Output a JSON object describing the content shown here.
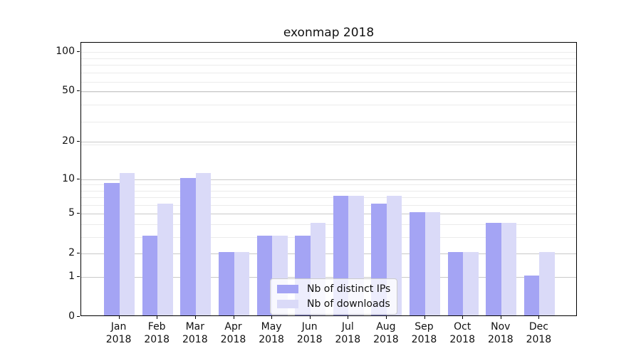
{
  "chart_data": {
    "type": "bar",
    "title": "exonmap 2018",
    "categories": [
      "Jan",
      "Feb",
      "Mar",
      "Apr",
      "May",
      "Jun",
      "Jul",
      "Aug",
      "Sep",
      "Oct",
      "Nov",
      "Dec"
    ],
    "category_year": "2018",
    "series": [
      {
        "name": "Nb of distinct IPs",
        "color": "#a4a4f4",
        "values": [
          9,
          3,
          10,
          2,
          3,
          3,
          7,
          6,
          5,
          2,
          4,
          1
        ]
      },
      {
        "name": "Nb of downloads",
        "color": "#dadaf8",
        "values": [
          11,
          6,
          11,
          2,
          3,
          4,
          7,
          7,
          5,
          2,
          4,
          2
        ]
      }
    ],
    "xlabel": "",
    "ylabel": "",
    "yscale": "log1p",
    "ylim": [
      0,
      117
    ],
    "y_ticks": [
      100,
      50,
      20,
      10,
      5,
      2,
      1,
      0
    ],
    "y_minor_gridlines": [
      3,
      4,
      6,
      7,
      8,
      9,
      19,
      29,
      39,
      49,
      59,
      69,
      79,
      89,
      99
    ],
    "grid": true,
    "legend_position": "lower center"
  },
  "colors": {
    "background": "#ffffff",
    "spine": "#000000",
    "grid_major": "#c9c9c9",
    "grid_minor": "#ebebeb",
    "text": "#111111"
  }
}
